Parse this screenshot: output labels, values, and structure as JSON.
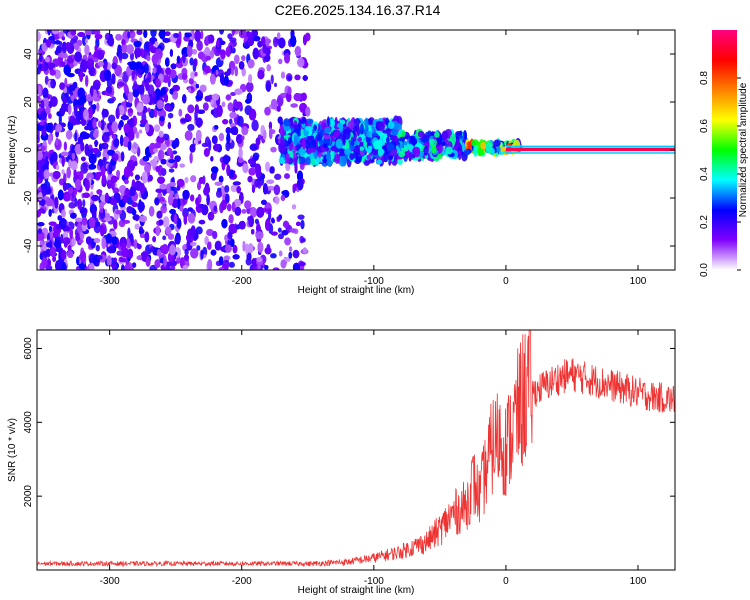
{
  "title": "C2E6.2025.134.16.37.R14",
  "chart_data": [
    {
      "type": "heatmap",
      "xlabel": "Height of straight line (km)",
      "ylabel": "Frequency (Hz)",
      "xlim": [
        -355,
        128
      ],
      "ylim": [
        -50,
        50
      ],
      "x_ticks": [
        -300,
        -200,
        -100,
        0,
        100
      ],
      "x_tick_labels": [
        "-300",
        "-200",
        "-100",
        "0",
        "100"
      ],
      "y_ticks": [
        -40,
        -20,
        0,
        20,
        40
      ],
      "y_tick_labels": [
        "-40",
        "-20",
        "0",
        "20",
        "40"
      ],
      "colorbar": {
        "label": "Normalized spectral amplitude",
        "range": [
          0,
          1
        ],
        "ticks": [
          0,
          0.2,
          0.4,
          0.6,
          0.8
        ],
        "tick_labels": [
          "0.0",
          "0.2",
          "0.4",
          "0.6",
          "0.8"
        ],
        "colors": [
          "#ffffff",
          "#8000ff",
          "#0000ff",
          "#00ffff",
          "#00ff00",
          "#ffff00",
          "#ff8000",
          "#ff0000",
          "#ff0080"
        ]
      },
      "regions": [
        {
          "x": [
            -355,
            -150
          ],
          "freq": [
            -50,
            50
          ],
          "amplitude": 0.15
        },
        {
          "x": [
            -170,
            -80
          ],
          "freq": [
            -5,
            12
          ],
          "amplitude": 0.35
        },
        {
          "x": [
            -80,
            -30
          ],
          "freq": [
            -3,
            7
          ],
          "amplitude": 0.4
        },
        {
          "x": [
            -30,
            10
          ],
          "freq": [
            -1,
            3
          ],
          "amplitude": 0.7
        },
        {
          "x": [
            0,
            128
          ],
          "freq": [
            -0.5,
            1
          ],
          "amplitude": 0.95
        }
      ]
    },
    {
      "type": "line",
      "xlabel": "Height of straight line (km)",
      "ylabel": "SNR (10 * v/v)",
      "xlim": [
        -355,
        128
      ],
      "ylim": [
        0,
        6500
      ],
      "x_ticks": [
        -300,
        -200,
        -100,
        0,
        100
      ],
      "x_tick_labels": [
        "-300",
        "-200",
        "-100",
        "0",
        "100"
      ],
      "y_ticks": [
        2000,
        4000,
        6000
      ],
      "y_tick_labels": [
        "2000",
        "4000",
        "6000"
      ],
      "color": "#ee3333",
      "series": [
        {
          "x": [
            -355,
            -300,
            -250,
            -200,
            -150,
            -120,
            -100,
            -80,
            -60,
            -50,
            -40,
            -30,
            -25,
            -20,
            -15,
            -10,
            -5,
            0,
            5,
            10,
            15,
            20,
            30,
            40,
            50,
            60,
            70,
            80,
            90,
            100,
            110,
            120,
            128
          ],
          "values": [
            150,
            150,
            150,
            150,
            150,
            200,
            300,
            450,
            700,
            1000,
            1400,
            1600,
            2200,
            1800,
            2500,
            3100,
            3300,
            3000,
            3500,
            4000,
            4400,
            4800,
            5000,
            5200,
            5300,
            5200,
            5100,
            5000,
            4900,
            4800,
            4700,
            4650,
            4600
          ]
        }
      ]
    }
  ]
}
